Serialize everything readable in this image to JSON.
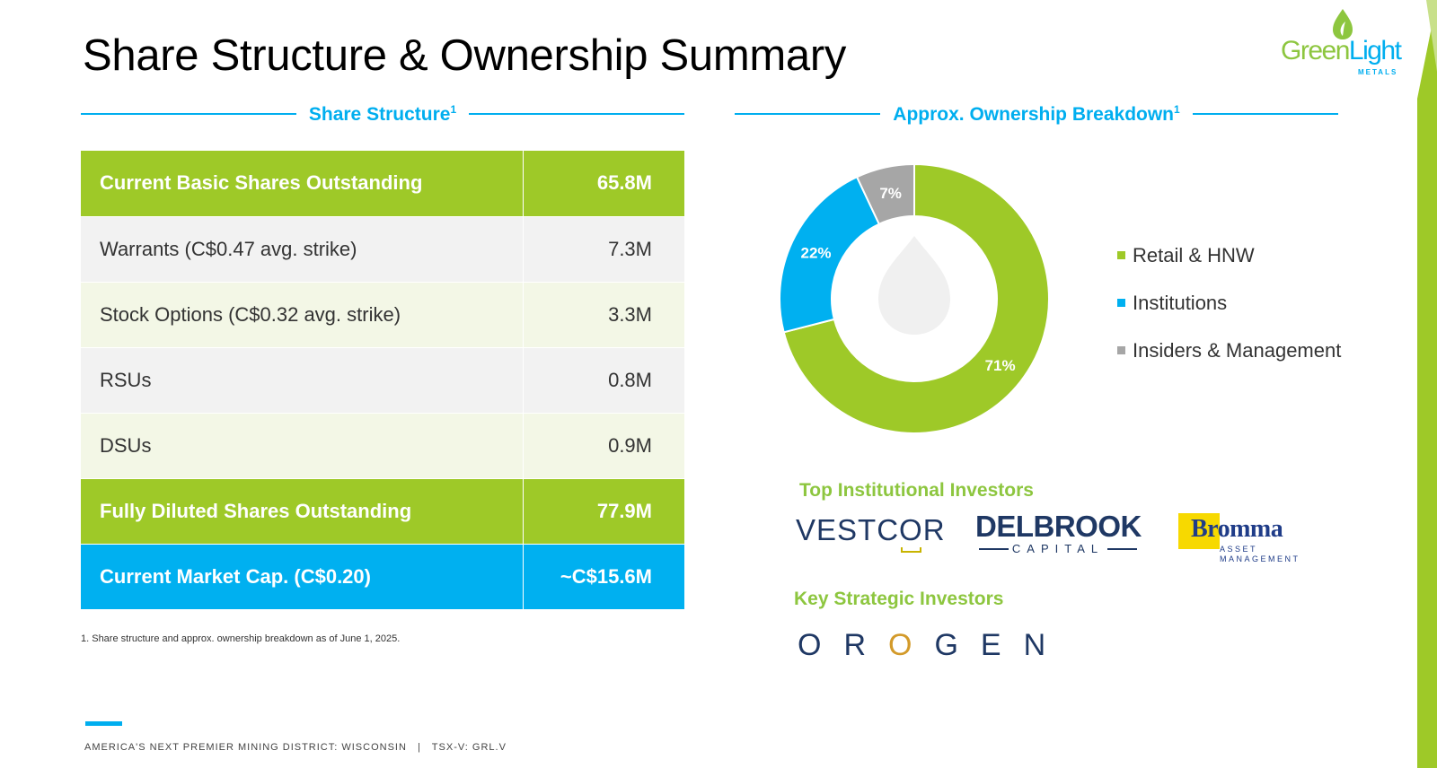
{
  "title": "Share Structure & Ownership Summary",
  "logo": {
    "word_green": "Green",
    "word_blue": "Light",
    "sub": "METALS"
  },
  "share_structure": {
    "heading": "Share Structure",
    "heading_sup": "1",
    "rows": [
      {
        "label": "Current Basic Shares Outstanding",
        "value": "65.8M",
        "style": "green"
      },
      {
        "label": "Warrants (C$0.47 avg. strike)",
        "value": "7.3M",
        "style": "grey"
      },
      {
        "label": "Stock Options (C$0.32 avg. strike)",
        "value": "3.3M",
        "style": "cream"
      },
      {
        "label": "RSUs",
        "value": "0.8M",
        "style": "grey"
      },
      {
        "label": "DSUs",
        "value": "0.9M",
        "style": "cream"
      },
      {
        "label": "Fully Diluted Shares Outstanding",
        "value": "77.9M",
        "style": "green"
      },
      {
        "label": "Current Market Cap. (C$0.20)",
        "value": "~C$15.6M",
        "style": "blue"
      }
    ],
    "footnote": "1. Share structure and approx. ownership breakdown as of June 1, 2025."
  },
  "ownership": {
    "heading": "Approx. Ownership Breakdown",
    "heading_sup": "1"
  },
  "chart_data": {
    "type": "pie",
    "title": "",
    "categories": [
      "Retail & HNW",
      "Institutions",
      "Insiders & Management"
    ],
    "values": [
      71,
      22,
      7
    ],
    "labels": [
      "71%",
      "22%",
      "7%"
    ],
    "colors": [
      "#9ec928",
      "#00b0f0",
      "#a6a6a6"
    ],
    "donut": true,
    "legend_position": "right"
  },
  "investors": {
    "institutional_heading": "Top Institutional Investors",
    "strategic_heading": "Key Strategic Investors",
    "vestcor": {
      "before": "VESTC",
      "o": "O",
      "after": "R"
    },
    "delbrook": {
      "main": "DELBROOK",
      "sub": "CAPITAL"
    },
    "bromma": {
      "main": "Bromma",
      "sub1": "ASSET",
      "sub2": "MANAGEMENT"
    },
    "orogen": {
      "before": "OR",
      "o": "O",
      "after": "GEN"
    }
  },
  "footer": {
    "left": "AMERICA'S NEXT PREMIER MINING DISTRICT: WISCONSIN",
    "separator": "|",
    "right": "TSX-V: GRL.V"
  }
}
